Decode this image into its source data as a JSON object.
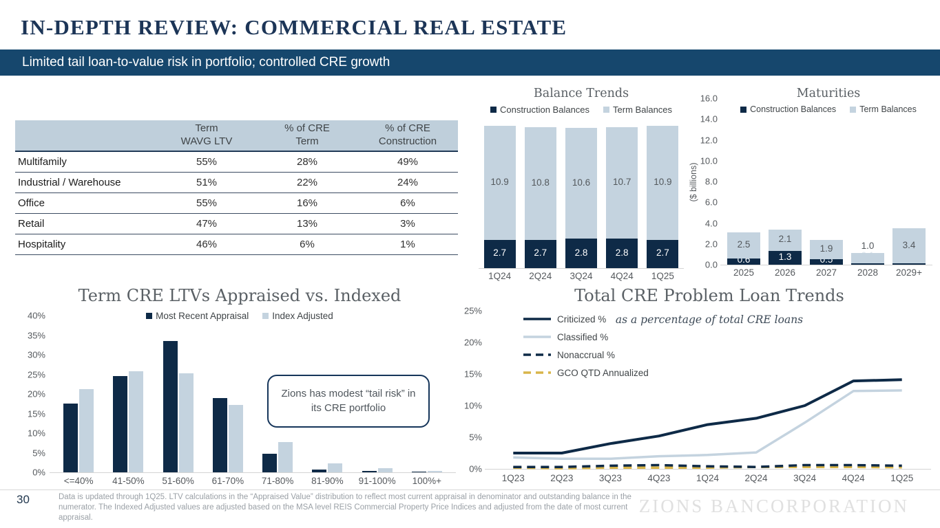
{
  "slide": {
    "title": "IN-DEPTH REVIEW: COMMERCIAL REAL ESTATE",
    "banner": "Limited tail loan-to-value risk in portfolio; controlled CRE growth",
    "page_number": "30",
    "footnote": "Data is updated through 1Q25. LTV calculations in the “Appraised Value” distribution to reflect most current appraisal in denominator and outstanding balance in the numerator. The Indexed Adjusted values are adjusted based on the MSA level REIS Commercial Property Price Indices and adjusted from the date of most current appraisal.",
    "logo": "ZIONS BANCORPORATION"
  },
  "colors": {
    "navy": "#0e2a47",
    "light_blue": "#c4d3df",
    "gold": "#d9b54a",
    "banner_bg": "#16476d",
    "title_navy": "#1c3557"
  },
  "ltv_table": {
    "columns": [
      "Term\nWAVG LTV",
      "% of CRE\nTerm",
      "% of CRE\nConstruction"
    ],
    "rows": [
      {
        "label": "Multifamily",
        "values": [
          "55%",
          "28%",
          "49%"
        ]
      },
      {
        "label": "Industrial / Warehouse",
        "values": [
          "51%",
          "22%",
          "24%"
        ]
      },
      {
        "label": "Office",
        "values": [
          "55%",
          "16%",
          "6%"
        ]
      },
      {
        "label": "Retail",
        "values": [
          "47%",
          "13%",
          "3%"
        ]
      },
      {
        "label": "Hospitality",
        "values": [
          "46%",
          "6%",
          "1%"
        ]
      }
    ]
  },
  "chart_data": [
    {
      "id": "balance_trends",
      "type": "bar",
      "stacked": true,
      "title": "Balance Trends",
      "categories": [
        "1Q24",
        "2Q24",
        "3Q24",
        "4Q24",
        "1Q25"
      ],
      "series": [
        {
          "name": "Construction Balances",
          "color": "#0e2a47",
          "values": [
            2.7,
            2.7,
            2.8,
            2.8,
            2.7
          ]
        },
        {
          "name": "Term Balances",
          "color": "#c4d3df",
          "values": [
            10.9,
            10.8,
            10.6,
            10.7,
            10.9
          ]
        }
      ],
      "ylim": [
        0,
        16
      ],
      "data_labels": true,
      "legend_position": "top"
    },
    {
      "id": "maturities",
      "type": "bar",
      "stacked": true,
      "title": "Maturities",
      "categories": [
        "2025",
        "2026",
        "2027",
        "2028",
        "2029+"
      ],
      "series": [
        {
          "name": "Construction Balances",
          "color": "#0e2a47",
          "values": [
            0.6,
            1.3,
            0.5,
            0.1,
            0.1
          ]
        },
        {
          "name": "Term Balances",
          "color": "#c4d3df",
          "values": [
            2.5,
            2.1,
            1.9,
            1.0,
            3.4
          ]
        }
      ],
      "ylim": [
        0,
        16
      ],
      "ytick_step": 2,
      "ytick_format": "dec1",
      "ylabel": "($ billions)",
      "data_labels": true,
      "legend_position": "top"
    },
    {
      "id": "ltv_distribution",
      "type": "bar",
      "stacked": false,
      "title": "Term CRE LTVs Appraised vs. Indexed",
      "categories": [
        "<=40%",
        "41-50%",
        "51-60%",
        "61-70%",
        "71-80%",
        "81-90%",
        "91-100%",
        "100%+"
      ],
      "series": [
        {
          "name": "Most Recent Appraisal",
          "color": "#0e2a47",
          "values": [
            17.5,
            24.5,
            33.5,
            19.0,
            4.8,
            0.7,
            0.4,
            0.1
          ]
        },
        {
          "name": "Index Adjusted",
          "color": "#c4d3df",
          "values": [
            21.2,
            25.8,
            25.3,
            17.2,
            7.7,
            2.2,
            1.0,
            0.3
          ]
        }
      ],
      "ylim": [
        0,
        40
      ],
      "ytick_step": 5,
      "ytick_format": "pct",
      "annotation": "Zions has modest “tail risk” in its CRE portfolio",
      "legend_position": "top"
    },
    {
      "id": "problem_loans",
      "type": "line",
      "title": "Total CRE Problem Loan Trends",
      "subtitle": "as a percentage of total CRE loans",
      "x": [
        "1Q23",
        "2Q23",
        "3Q23",
        "4Q23",
        "1Q24",
        "2Q24",
        "3Q24",
        "4Q24",
        "1Q25"
      ],
      "ylim": [
        0,
        25
      ],
      "ytick_step": 5,
      "ytick_format": "pct",
      "legend_position": "left",
      "series": [
        {
          "name": "Criticized %",
          "color": "#0e2a47",
          "dash": "solid",
          "values": [
            2.5,
            2.5,
            4.0,
            5.2,
            7.0,
            8.0,
            10.0,
            13.9,
            14.1
          ]
        },
        {
          "name": "Classified %",
          "color": "#c4d3df",
          "dash": "solid",
          "values": [
            1.8,
            1.6,
            1.6,
            2.0,
            2.2,
            2.6,
            7.3,
            12.3,
            12.4
          ]
        },
        {
          "name": "Nonaccrual %",
          "color": "#0e2a47",
          "dash": "dashed",
          "values": [
            0.3,
            0.3,
            0.5,
            0.6,
            0.4,
            0.3,
            0.6,
            0.6,
            0.5
          ]
        },
        {
          "name": "GCO QTD Annualized",
          "color": "#d9b54a",
          "dash": "dashed",
          "values": [
            0.2,
            0.1,
            0.2,
            0.2,
            0.2,
            0.3,
            0.3,
            0.3,
            0.25
          ]
        }
      ]
    }
  ]
}
